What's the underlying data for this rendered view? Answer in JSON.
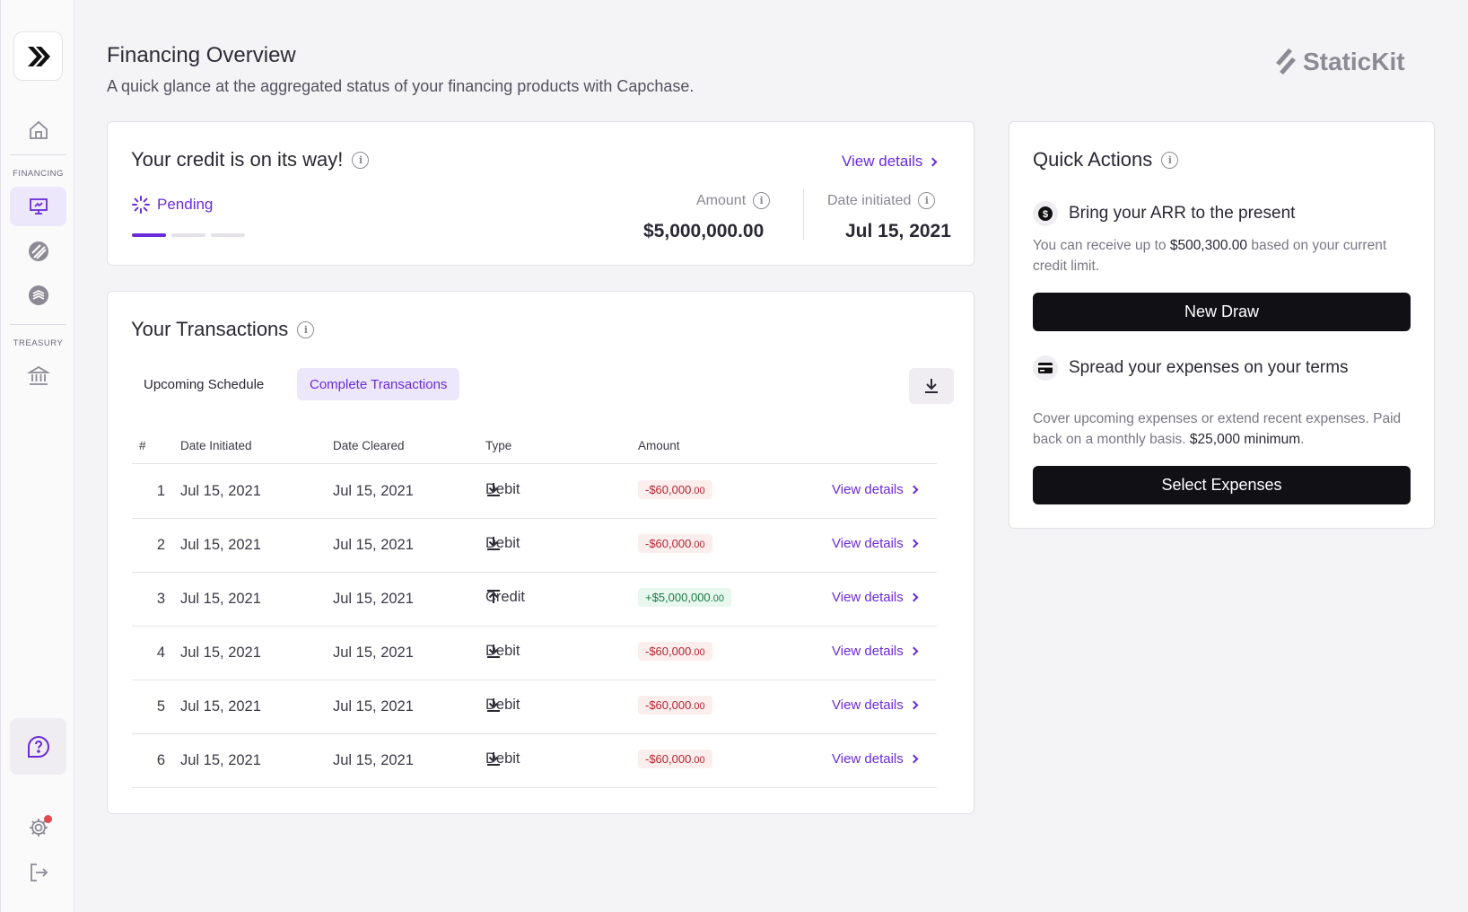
{
  "sidebar": {
    "financing_label": "FINANCING",
    "treasury_label": "TREASURY"
  },
  "header": {
    "title": "Financing Overview",
    "subtitle": "A quick glance at the aggregated status of your financing products with Capchase.",
    "brand": "StaticKit"
  },
  "credit": {
    "title": "Your credit is on its way!",
    "view_details": "View details",
    "status": "Pending",
    "progress_step": 1,
    "progress_total": 3,
    "amount_label": "Amount",
    "amount_value": "$5,000,000.00",
    "date_label": "Date initiated",
    "date_value": "Jul 15, 2021"
  },
  "transactions": {
    "title": "Your Transactions",
    "tabs": [
      "Upcoming Schedule",
      "Complete Transactions"
    ],
    "active_tab": 1,
    "columns": [
      "#",
      "Date Initiated",
      "Date Cleared",
      "Type",
      "Amount"
    ],
    "rows": [
      {
        "num": "1",
        "initiated": "Jul 15, 2021",
        "cleared": "Jul 15, 2021",
        "type": "Debit",
        "amount_main": "-$60,000",
        "amount_cents": ".00",
        "sign": "neg",
        "link": "View details"
      },
      {
        "num": "2",
        "initiated": "Jul 15, 2021",
        "cleared": "Jul 15, 2021",
        "type": "Debit",
        "amount_main": "-$60,000",
        "amount_cents": ".00",
        "sign": "neg",
        "link": "View details"
      },
      {
        "num": "3",
        "initiated": "Jul 15, 2021",
        "cleared": "Jul 15, 2021",
        "type": "Credit",
        "amount_main": "+$5,000,000",
        "amount_cents": ".00",
        "sign": "pos",
        "link": "View details"
      },
      {
        "num": "4",
        "initiated": "Jul 15, 2021",
        "cleared": "Jul 15, 2021",
        "type": "Debit",
        "amount_main": "-$60,000",
        "amount_cents": ".00",
        "sign": "neg",
        "link": "View details"
      },
      {
        "num": "5",
        "initiated": "Jul 15, 2021",
        "cleared": "Jul 15, 2021",
        "type": "Debit",
        "amount_main": "-$60,000",
        "amount_cents": ".00",
        "sign": "neg",
        "link": "View details"
      },
      {
        "num": "6",
        "initiated": "Jul 15, 2021",
        "cleared": "Jul 15, 2021",
        "type": "Debit",
        "amount_main": "-$60,000",
        "amount_cents": ".00",
        "sign": "neg",
        "link": "View details"
      }
    ]
  },
  "quick_actions": {
    "title": "Quick Actions",
    "arr": {
      "heading": "Bring your ARR to the present",
      "desc_pre": "You can receive up to ",
      "desc_amount": "$500,300.00",
      "desc_post": " based on your current credit limit.",
      "button": "New Draw"
    },
    "expenses": {
      "heading": "Spread your expenses on your terms",
      "desc_pre": "Cover upcoming expenses or extend recent expenses. Paid back on a monthly basis. ",
      "desc_amount": "$25,000 minimum",
      "desc_post": ".",
      "button": "Select Expenses"
    }
  },
  "colors": {
    "accent": "#6a2bd9",
    "accent_soft": "#ece7fb",
    "negative": "#b4232e",
    "positive": "#187a43",
    "notification": "#e5484d"
  }
}
